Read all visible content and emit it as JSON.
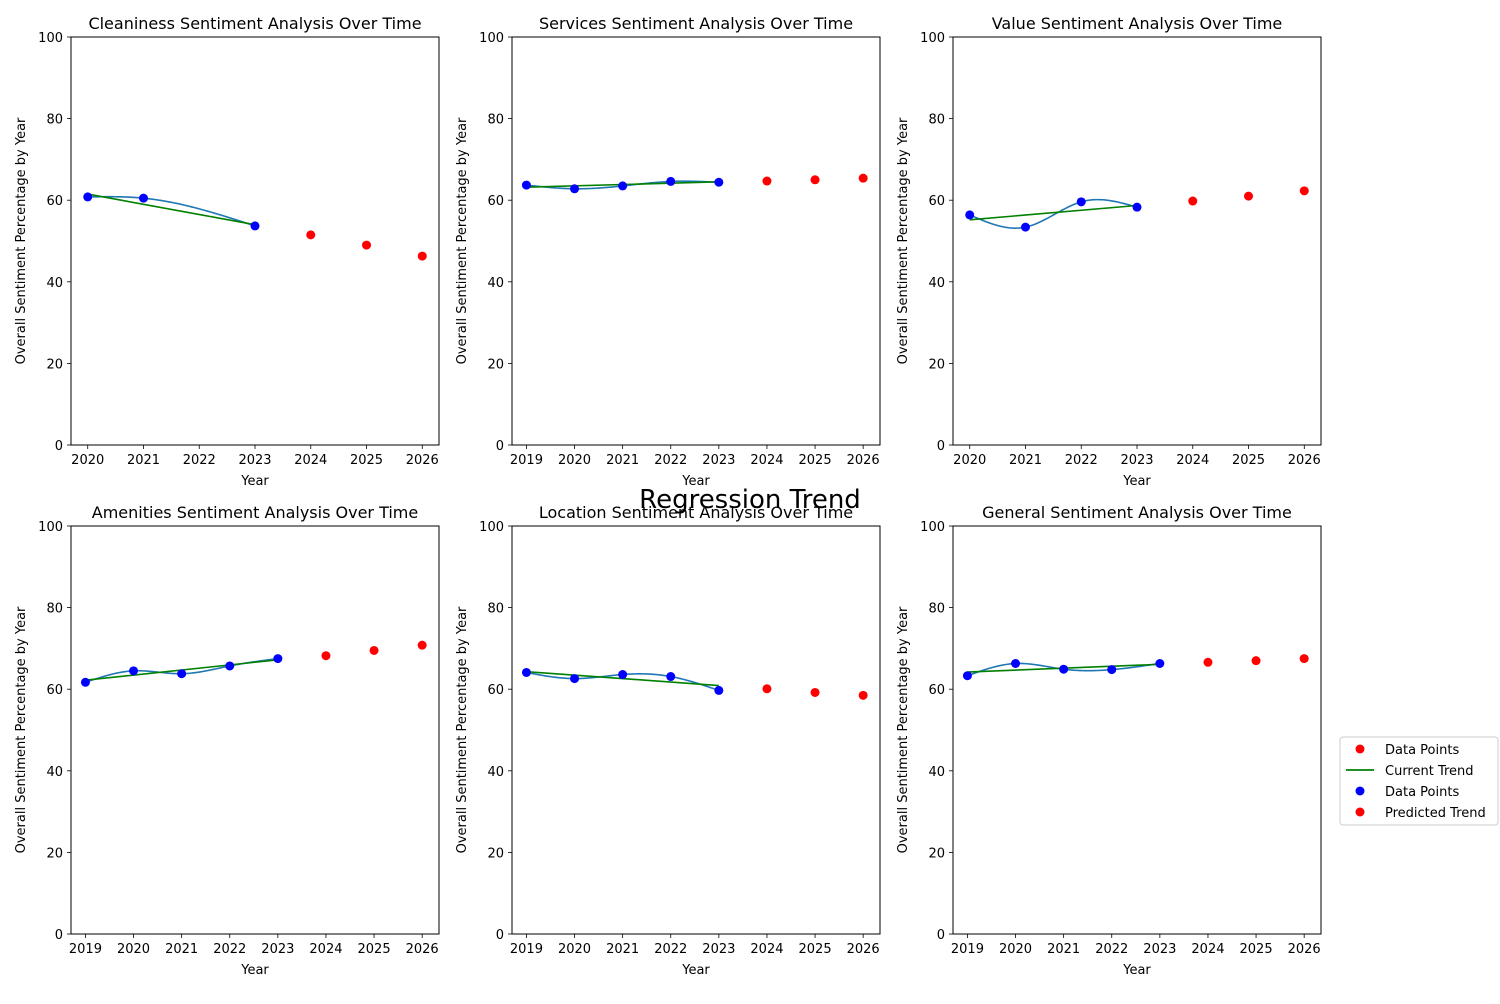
{
  "figure": {
    "suptitle": "Regression Trend",
    "legend": {
      "placement": "right",
      "entries": [
        {
          "label": "Data Points",
          "kind": "marker",
          "color": "#ff0000"
        },
        {
          "label": "Current Trend",
          "kind": "line",
          "color": "#008000"
        },
        {
          "label": "Data Points",
          "kind": "marker",
          "color": "#0000ff"
        },
        {
          "label": "Predicted Trend",
          "kind": "marker",
          "color": "#ff0000"
        }
      ]
    }
  },
  "colors": {
    "observed": "#0000ff",
    "predicted": "#ff0000",
    "trend": "#008000",
    "spline": "#1f77b4"
  },
  "chart_data": [
    {
      "type": "scatter",
      "title": "Cleaniness Sentiment Analysis Over Time",
      "xlabel": "Year",
      "ylabel": "Overall Sentiment Percentage by Year",
      "ylim": [
        0,
        100
      ],
      "xlim": [
        2019.7,
        2026.3
      ],
      "x_ticks": [
        2020,
        2021,
        2022,
        2023,
        2024,
        2025,
        2026
      ],
      "y_ticks": [
        0,
        20,
        40,
        60,
        80,
        100
      ],
      "observed": {
        "x": [
          2020,
          2021,
          2023
        ],
        "y": [
          60.8,
          60.5,
          53.7
        ]
      },
      "trend": {
        "x": [
          2020,
          2023
        ],
        "y": [
          61.5,
          54.0
        ]
      },
      "predicted": {
        "x": [
          2024,
          2025,
          2026
        ],
        "y": [
          51.5,
          49.0,
          46.3
        ]
      }
    },
    {
      "type": "scatter",
      "title": "Services Sentiment Analysis Over Time",
      "xlabel": "Year",
      "ylabel": "Overall Sentiment Percentage by Year",
      "ylim": [
        0,
        100
      ],
      "xlim": [
        2018.7,
        2026.35
      ],
      "x_ticks": [
        2019,
        2020,
        2021,
        2022,
        2023,
        2024,
        2025,
        2026
      ],
      "y_ticks": [
        0,
        20,
        40,
        60,
        80,
        100
      ],
      "observed": {
        "x": [
          2019,
          2020,
          2021,
          2022,
          2023
        ],
        "y": [
          63.7,
          62.8,
          63.5,
          64.6,
          64.4
        ]
      },
      "trend": {
        "x": [
          2019,
          2023
        ],
        "y": [
          63.2,
          64.5
        ]
      },
      "predicted": {
        "x": [
          2024,
          2025,
          2026
        ],
        "y": [
          64.7,
          65.0,
          65.4
        ]
      }
    },
    {
      "type": "scatter",
      "title": "Value Sentiment Analysis Over Time",
      "xlabel": "Year",
      "ylabel": "Overall Sentiment Percentage by Year",
      "ylim": [
        0,
        100
      ],
      "xlim": [
        2019.7,
        2026.3
      ],
      "x_ticks": [
        2020,
        2021,
        2022,
        2023,
        2024,
        2025,
        2026
      ],
      "y_ticks": [
        0,
        20,
        40,
        60,
        80,
        100
      ],
      "observed": {
        "x": [
          2020,
          2021,
          2022,
          2023
        ],
        "y": [
          56.4,
          53.4,
          59.6,
          58.3
        ]
      },
      "trend": {
        "x": [
          2020,
          2023
        ],
        "y": [
          55.2,
          58.7
        ]
      },
      "predicted": {
        "x": [
          2024,
          2025,
          2026
        ],
        "y": [
          59.8,
          61.0,
          62.3
        ]
      }
    },
    {
      "type": "scatter",
      "title": "Amenities Sentiment Analysis Over Time",
      "xlabel": "Year",
      "ylabel": "Overall Sentiment Percentage by Year",
      "ylim": [
        0,
        100
      ],
      "xlim": [
        2018.7,
        2026.35
      ],
      "x_ticks": [
        2019,
        2020,
        2021,
        2022,
        2023,
        2024,
        2025,
        2026
      ],
      "y_ticks": [
        0,
        20,
        40,
        60,
        80,
        100
      ],
      "observed": {
        "x": [
          2019,
          2020,
          2021,
          2022,
          2023
        ],
        "y": [
          61.7,
          64.5,
          63.8,
          65.7,
          67.5
        ]
      },
      "trend": {
        "x": [
          2019,
          2023
        ],
        "y": [
          62.2,
          67.2
        ]
      },
      "predicted": {
        "x": [
          2024,
          2025,
          2026
        ],
        "y": [
          68.2,
          69.5,
          70.8
        ]
      }
    },
    {
      "type": "scatter",
      "title": "Location Sentiment Analysis Over Time",
      "xlabel": "Year",
      "ylabel": "Overall Sentiment Percentage by Year",
      "ylim": [
        0,
        100
      ],
      "xlim": [
        2018.7,
        2026.35
      ],
      "x_ticks": [
        2019,
        2020,
        2021,
        2022,
        2023,
        2024,
        2025,
        2026
      ],
      "y_ticks": [
        0,
        20,
        40,
        60,
        80,
        100
      ],
      "observed": {
        "x": [
          2019,
          2020,
          2021,
          2022,
          2023
        ],
        "y": [
          64.1,
          62.6,
          63.6,
          63.1,
          59.7
        ]
      },
      "trend": {
        "x": [
          2019,
          2023
        ],
        "y": [
          64.3,
          60.9
        ]
      },
      "predicted": {
        "x": [
          2024,
          2025,
          2026
        ],
        "y": [
          60.1,
          59.2,
          58.5
        ]
      }
    },
    {
      "type": "scatter",
      "title": "General Sentiment Analysis Over Time",
      "xlabel": "Year",
      "ylabel": "Overall Sentiment Percentage by Year",
      "ylim": [
        0,
        100
      ],
      "xlim": [
        2018.7,
        2026.35
      ],
      "x_ticks": [
        2019,
        2020,
        2021,
        2022,
        2023,
        2024,
        2025,
        2026
      ],
      "y_ticks": [
        0,
        20,
        40,
        60,
        80,
        100
      ],
      "observed": {
        "x": [
          2019,
          2020,
          2021,
          2022,
          2023
        ],
        "y": [
          63.3,
          66.3,
          64.9,
          64.8,
          66.3
        ]
      },
      "trend": {
        "x": [
          2019,
          2023
        ],
        "y": [
          64.2,
          66.1
        ]
      },
      "predicted": {
        "x": [
          2024,
          2025,
          2026
        ],
        "y": [
          66.6,
          67.0,
          67.5
        ]
      }
    }
  ]
}
